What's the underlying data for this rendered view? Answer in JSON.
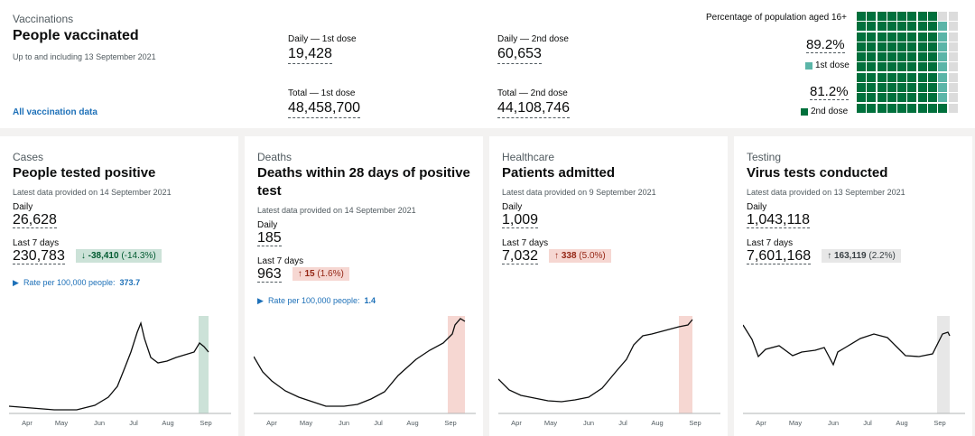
{
  "vaccinations": {
    "category": "Vaccinations",
    "title": "People vaccinated",
    "updated": "Up to and including 13 September 2021",
    "link": "All vaccination data",
    "daily_first_label": "Daily — 1st dose",
    "daily_first_value": "19,428",
    "daily_second_label": "Daily — 2nd dose",
    "daily_second_value": "60,653",
    "total_first_label": "Total — 1st dose",
    "total_first_value": "48,458,700",
    "total_second_label": "Total — 2nd dose",
    "total_second_value": "44,108,746",
    "percentage_title": "Percentage of population aged 16+",
    "first_pct": "89.2%",
    "first_label": "1st dose",
    "second_pct": "81.2%",
    "second_label": "2nd dose",
    "first_dose_fraction": 0.892,
    "second_dose_fraction": 0.812,
    "colors": {
      "first": "#5bb5a8",
      "second": "#00703c",
      "none": "#dcdcdc"
    }
  },
  "tiles": [
    {
      "category": "Cases",
      "title": "People tested positive",
      "updated": "Latest data provided on 14 September 2021",
      "daily_label": "Daily",
      "daily_value": "26,628",
      "week_label": "Last 7 days",
      "week_value": "230,783",
      "change_arrow": "↓",
      "change_value": "-38,410",
      "change_pct": "(-14.3%)",
      "change_color": "#cce2d8",
      "change_text_color": "#005a30",
      "rate_label": "Rate per 100,000 people:",
      "rate_value": "373.7",
      "highlight_color": "#cce2d8",
      "line_color": "#0b0c0c",
      "months": [
        "Apr",
        "May",
        "Jun",
        "Jul",
        "Aug",
        "Sep"
      ]
    },
    {
      "category": "Deaths",
      "title": "Deaths within 28 days of positive test",
      "updated": "Latest data provided on 14 September 2021",
      "daily_label": "Daily",
      "daily_value": "185",
      "week_label": "Last 7 days",
      "week_value": "963",
      "change_arrow": "↑",
      "change_value": "15",
      "change_pct": "(1.6%)",
      "change_color": "#f6d7d2",
      "change_text_color": "#942514",
      "rate_label": "Rate per 100,000 people:",
      "rate_value": "1.4",
      "highlight_color": "#f6d7d2",
      "line_color": "#0b0c0c",
      "months": [
        "Apr",
        "May",
        "Jun",
        "Jul",
        "Aug",
        "Sep"
      ]
    },
    {
      "category": "Healthcare",
      "title": "Patients admitted",
      "updated": "Latest data provided on 9 September 2021",
      "daily_label": "Daily",
      "daily_value": "1,009",
      "week_label": "Last 7 days",
      "week_value": "7,032",
      "change_arrow": "↑",
      "change_value": "338",
      "change_pct": "(5.0%)",
      "change_color": "#f6d7d2",
      "change_text_color": "#942514",
      "highlight_color": "#f6d7d2",
      "line_color": "#0b0c0c",
      "months": [
        "Apr",
        "May",
        "Jun",
        "Jul",
        "Aug",
        "Sep"
      ]
    },
    {
      "category": "Testing",
      "title": "Virus tests conducted",
      "updated": "Latest data provided on 13 September 2021",
      "daily_label": "Daily",
      "daily_value": "1,043,118",
      "week_label": "Last 7 days",
      "week_value": "7,601,168",
      "change_arrow": "↑",
      "change_value": "163,119",
      "change_pct": "(2.2%)",
      "change_color": "#e7e7e7",
      "change_text_color": "#383f43",
      "highlight_color": "#e7e7e7",
      "line_color": "#0b0c0c",
      "months": [
        "Apr",
        "May",
        "Jun",
        "Jul",
        "Aug",
        "Sep"
      ]
    }
  ]
}
